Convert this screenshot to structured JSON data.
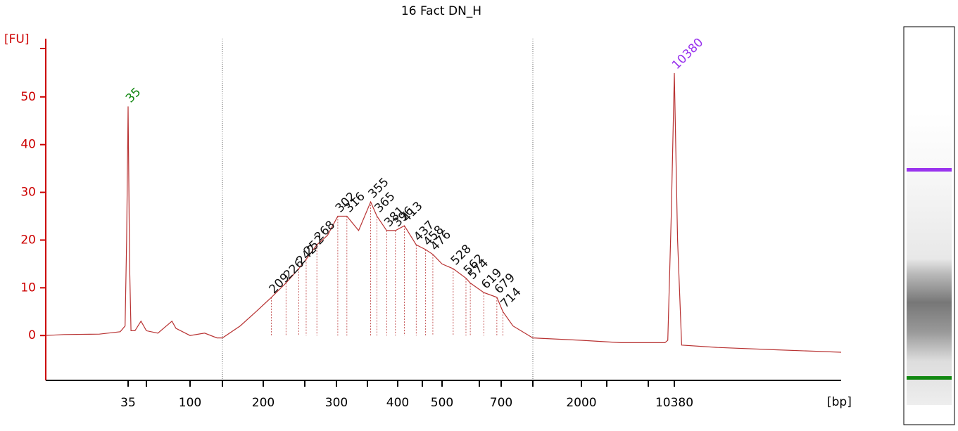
{
  "chart_data": {
    "type": "line",
    "title": "16 Fact DN_H",
    "y_label": "[FU]",
    "x_label": "[bp]",
    "color": "#b83232",
    "axis_color": "#cc0000",
    "x": [
      7,
      10,
      20,
      30,
      33,
      34,
      35,
      36,
      37,
      40,
      45,
      50,
      60,
      75,
      80,
      100,
      120,
      140,
      150,
      170,
      190,
      209,
      226,
      242,
      252,
      268,
      285,
      302,
      316,
      335,
      355,
      365,
      381,
      396,
      413,
      437,
      458,
      476,
      500,
      528,
      562,
      574,
      619,
      679,
      714,
      800,
      1000,
      2000,
      4000,
      9000,
      9400,
      9900,
      10380,
      10900,
      11600,
      20000,
      50000,
      130000
    ],
    "values": [
      0,
      0.2,
      0.3,
      0.8,
      2,
      20,
      48,
      15,
      1,
      1,
      3,
      1,
      0.5,
      3,
      1.5,
      0,
      0.5,
      -0.5,
      -0.5,
      2,
      5,
      8,
      11,
      14,
      16,
      19,
      21,
      25,
      25,
      22,
      28,
      25,
      22,
      22,
      23,
      19,
      18,
      17,
      15,
      14,
      12,
      11,
      9,
      8,
      5,
      2,
      -0.5,
      -1,
      -1.5,
      -1.5,
      -1,
      25,
      55,
      20,
      -2,
      -2.5,
      -3,
      -3.5
    ],
    "peaks": {
      "x": [
        35,
        209,
        226,
        242,
        252,
        268,
        302,
        316,
        355,
        365,
        381,
        396,
        413,
        437,
        458,
        476,
        528,
        562,
        574,
        619,
        679,
        714,
        10380
      ],
      "values": [
        48,
        8,
        11,
        14,
        16,
        19,
        25,
        25,
        28,
        25,
        22,
        22,
        23,
        19,
        18,
        17,
        14,
        12,
        11,
        9,
        8,
        5,
        55
      ],
      "colors": [
        "#118811",
        "#111111",
        "#111111",
        "#111111",
        "#111111",
        "#111111",
        "#111111",
        "#111111",
        "#111111",
        "#111111",
        "#111111",
        "#111111",
        "#111111",
        "#111111",
        "#111111",
        "#111111",
        "#111111",
        "#111111",
        "#111111",
        "#111111",
        "#111111",
        "#111111",
        "#9933ee"
      ]
    },
    "xlim": [
      7,
      130000
    ],
    "xticks": [
      35,
      {
        "value": 50,
        "label": null
      },
      100,
      {
        "value": 150,
        "label": null
      },
      200,
      {
        "value": 250,
        "label": null
      },
      300,
      {
        "value": 350,
        "label": null
      },
      400,
      {
        "value": 450,
        "label": null
      },
      500,
      {
        "value": 600,
        "label": null
      },
      700,
      {
        "value": 1000,
        "label": null
      },
      2000,
      {
        "value": 3000,
        "label": null
      },
      {
        "value": 7000,
        "label": null
      },
      10380
    ],
    "ylim": [
      -9.4,
      62.2
    ],
    "yticks": [
      0,
      10,
      20,
      30,
      40,
      50
    ],
    "grid": false
  }
}
